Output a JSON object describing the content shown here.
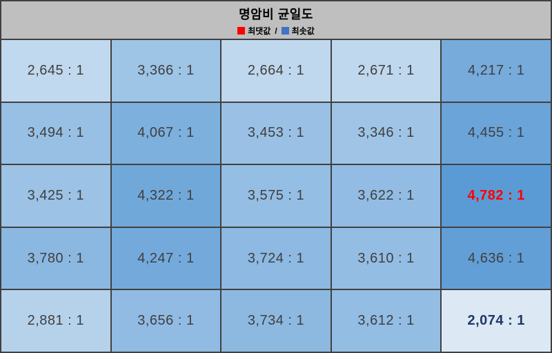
{
  "header": {
    "title": "명암비 균일도",
    "legend": {
      "max_label": "최댓값",
      "separator": "/",
      "min_label": "최솟값"
    }
  },
  "chart_data": {
    "type": "heatmap",
    "title": "명암비 균일도",
    "rows": 5,
    "cols": 5,
    "values": [
      [
        2645,
        3366,
        2664,
        2671,
        4217
      ],
      [
        3494,
        4067,
        3453,
        3346,
        4455
      ],
      [
        3425,
        4322,
        3575,
        3622,
        4782
      ],
      [
        3780,
        4247,
        3724,
        3610,
        4636
      ],
      [
        2881,
        3656,
        3734,
        3612,
        2074
      ]
    ],
    "labels": [
      [
        "2,645 : 1",
        "3,366 : 1",
        "2,664 : 1",
        "2,671 : 1",
        "4,217 : 1"
      ],
      [
        "3,494 : 1",
        "4,067 : 1",
        "3,453 : 1",
        "3,346 : 1",
        "4,455 : 1"
      ],
      [
        "3,425 : 1",
        "4,322 : 1",
        "3,575 : 1",
        "3,622 : 1",
        "4,782 : 1"
      ],
      [
        "3,780 : 1",
        "4,247 : 1",
        "3,724 : 1",
        "3,610 : 1",
        "4,636 : 1"
      ],
      [
        "2,881 : 1",
        "3,656 : 1",
        "3,734 : 1",
        "3,612 : 1",
        "2,074 : 1"
      ]
    ],
    "value_range": [
      2074,
      4782
    ],
    "max": {
      "value": 4782,
      "label": "4,782 : 1",
      "row": 2,
      "col": 4
    },
    "min": {
      "value": 2074,
      "label": "2,074 : 1",
      "row": 4,
      "col": 4
    },
    "colorscale": {
      "low": "#dce9f5",
      "high": "#5b9bd5"
    },
    "legend": [
      {
        "label": "최댓값",
        "color": "#ff0000"
      },
      {
        "label": "최솟값",
        "color": "#4472c4"
      }
    ]
  },
  "colors": {
    "frame_border": "#404040",
    "header_bg": "#bfbfbf",
    "grid_line": "#404040",
    "cell_text": "#3f3f3f",
    "max_text": "#ff0000",
    "min_text": "#1f3864",
    "legend_max_swatch": "#ff0000",
    "legend_min_swatch": "#4472c4"
  }
}
